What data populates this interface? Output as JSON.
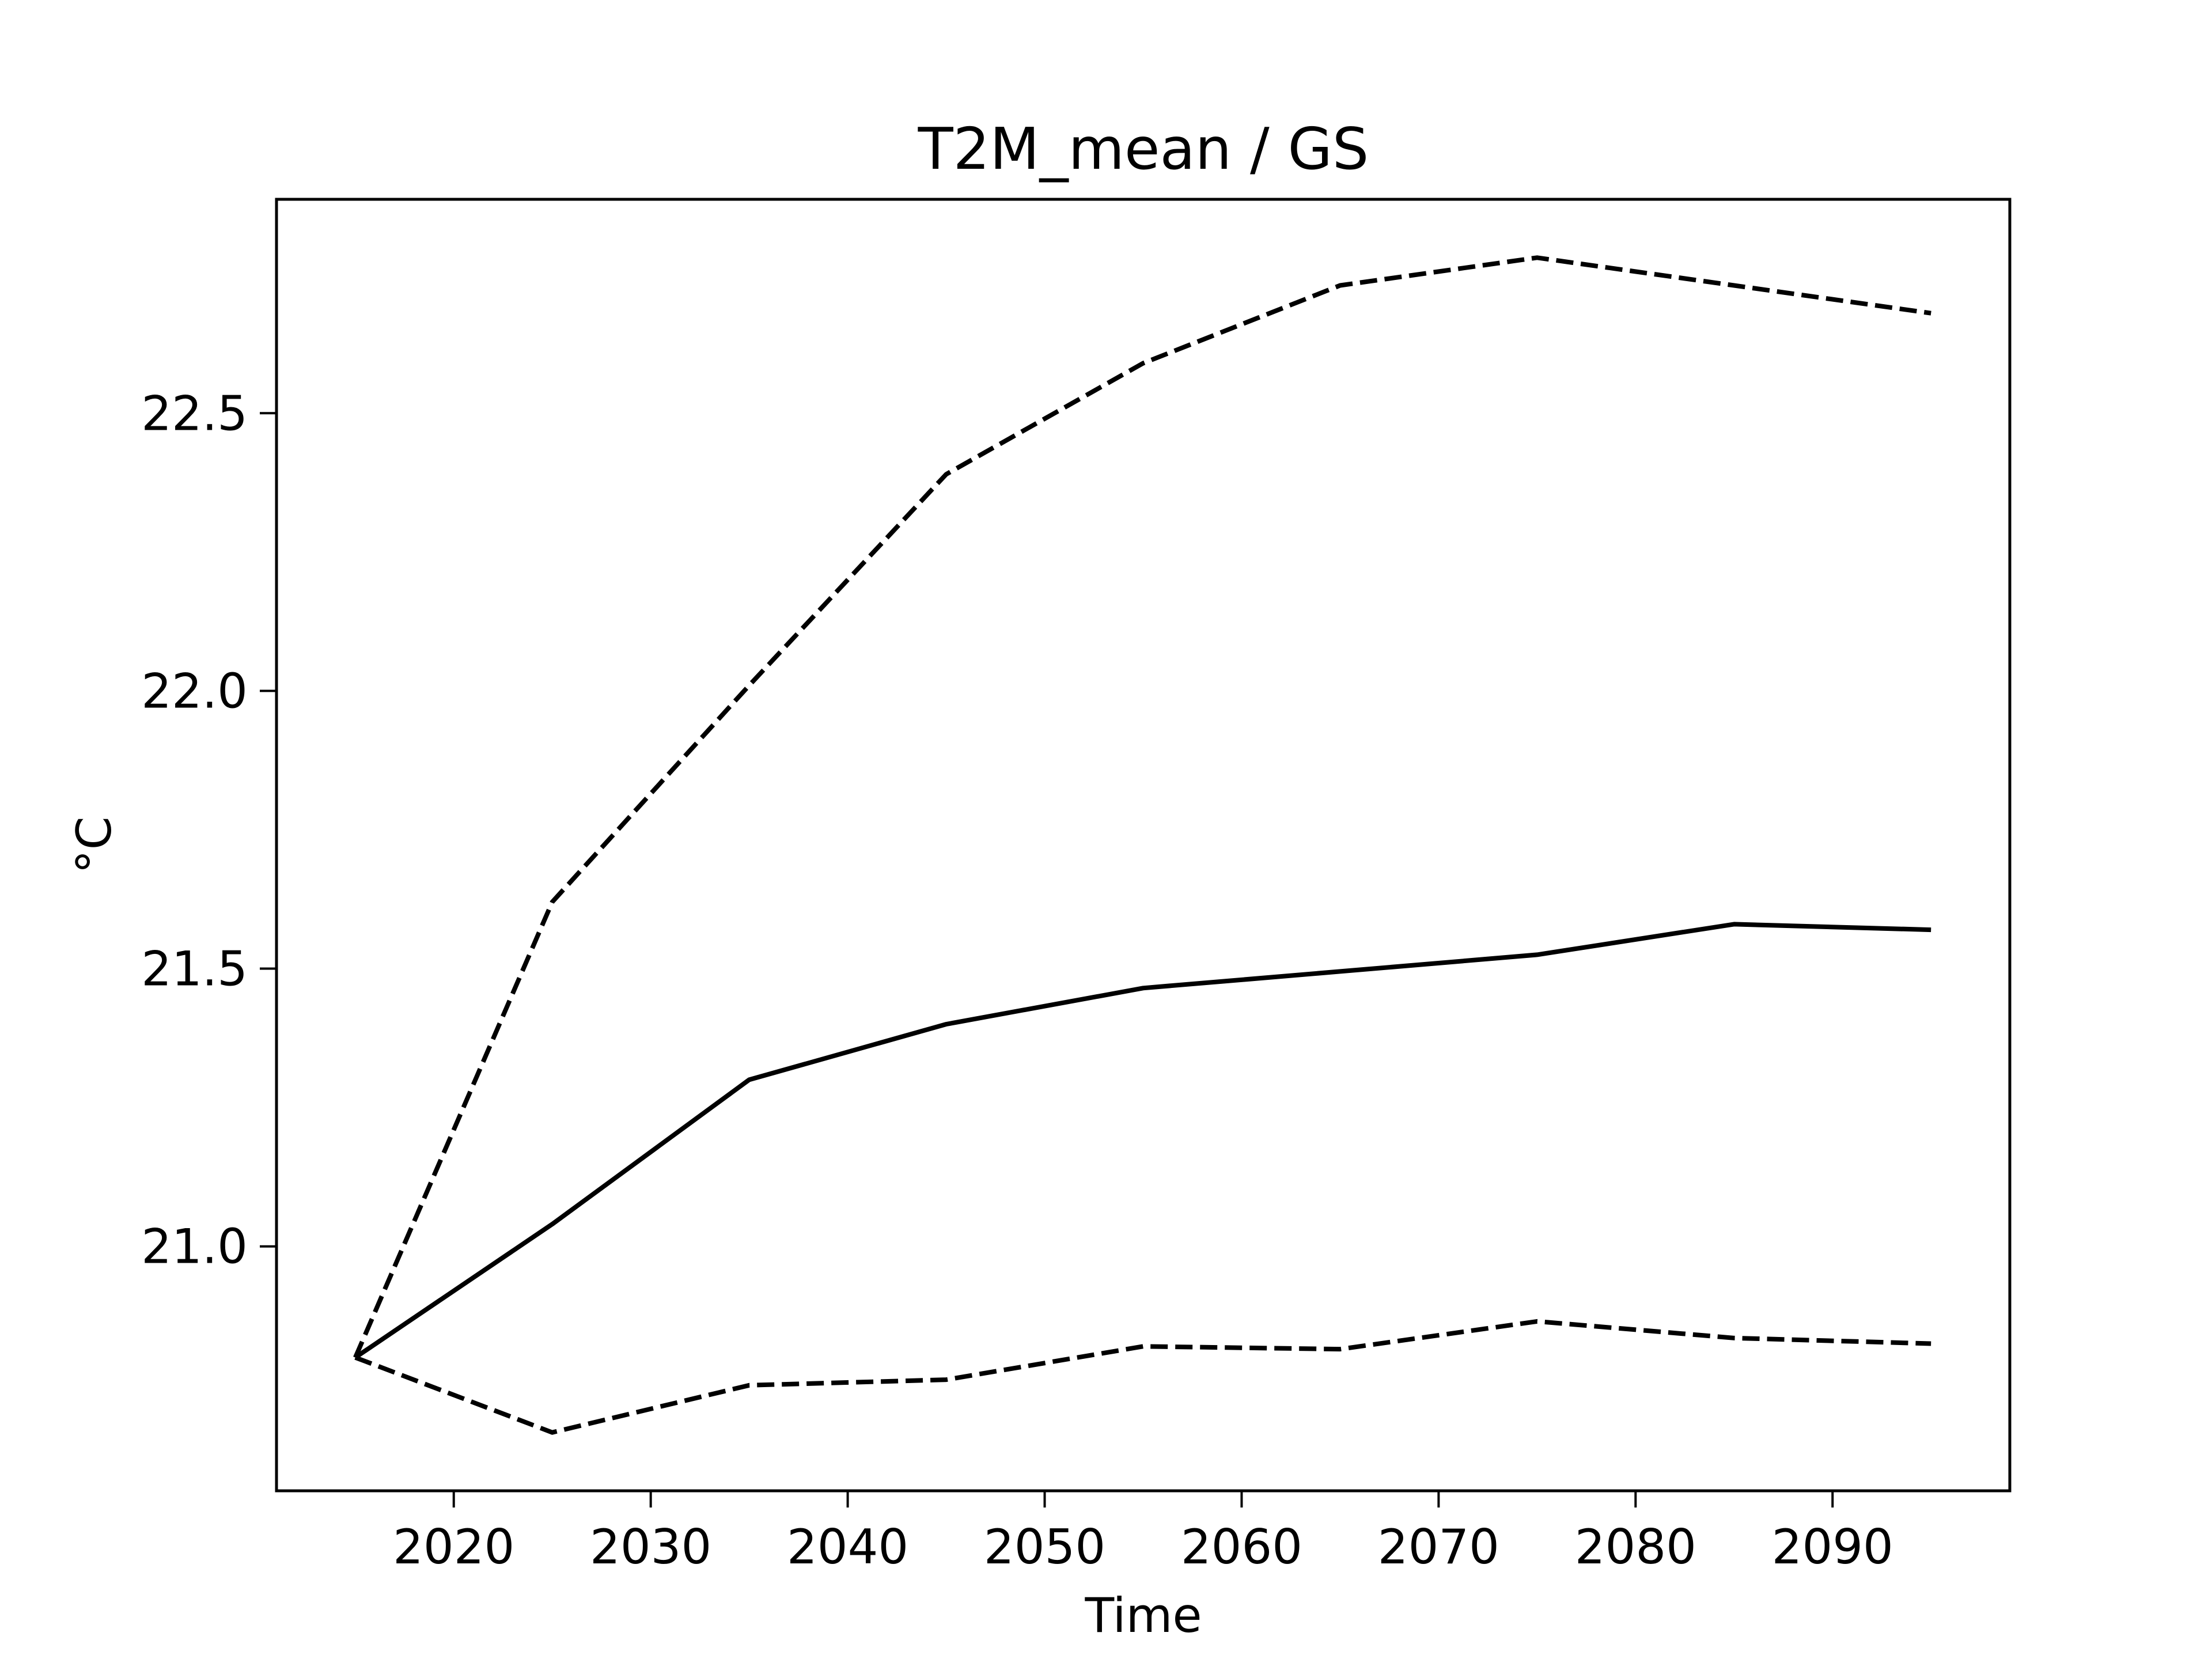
{
  "chart_data": {
    "type": "line",
    "title": "T2M_mean / GS",
    "xlabel": "Time",
    "ylabel": "°C",
    "xlim": [
      2011,
      2099
    ],
    "ylim": [
      20.56,
      22.885
    ],
    "xticks": [
      2020,
      2030,
      2040,
      2050,
      2060,
      2070,
      2080,
      2090
    ],
    "xtick_labels": [
      "2020",
      "2030",
      "2040",
      "2050",
      "2060",
      "2070",
      "2080",
      "2090"
    ],
    "yticks": [
      21.0,
      21.5,
      22.0,
      22.5
    ],
    "ytick_labels": [
      "21.0",
      "21.5",
      "22.0",
      "22.5"
    ],
    "grid": false,
    "legend": false,
    "series": [
      {
        "style": "dashed",
        "color": "#000000",
        "x": [
          2015,
          2025,
          2035,
          2045,
          2055,
          2065,
          2075,
          2085,
          2095
        ],
        "y": [
          20.8,
          21.62,
          22.01,
          22.39,
          22.59,
          22.73,
          22.78,
          22.73,
          22.68
        ]
      },
      {
        "style": "solid",
        "color": "#000000",
        "x": [
          2015,
          2025,
          2035,
          2045,
          2055,
          2065,
          2075,
          2085,
          2095
        ],
        "y": [
          20.8,
          21.04,
          21.3,
          21.4,
          21.465,
          21.495,
          21.525,
          21.58,
          21.57
        ]
      },
      {
        "style": "dashed",
        "color": "#000000",
        "x": [
          2015,
          2025,
          2035,
          2045,
          2055,
          2065,
          2075,
          2085,
          2095
        ],
        "y": [
          20.8,
          20.665,
          20.75,
          20.76,
          20.82,
          20.815,
          20.865,
          20.835,
          20.825
        ]
      }
    ]
  }
}
